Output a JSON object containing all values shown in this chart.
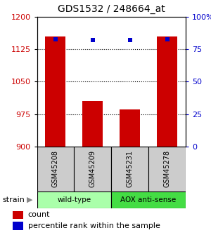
{
  "title": "GDS1532 / 248664_at",
  "samples": [
    "GSM45208",
    "GSM45209",
    "GSM45231",
    "GSM45278"
  ],
  "counts": [
    1155,
    1005,
    985,
    1155
  ],
  "percentiles": [
    83,
    82,
    82,
    83
  ],
  "ylim_left": [
    900,
    1200
  ],
  "ylim_right": [
    0,
    100
  ],
  "yticks_left": [
    900,
    975,
    1050,
    1125,
    1200
  ],
  "yticks_right": [
    0,
    25,
    50,
    75,
    100
  ],
  "bar_color": "#cc0000",
  "dot_color": "#0000cc",
  "groups": [
    {
      "label": "wild-type",
      "color": "#aaffaa"
    },
    {
      "label": "AOX anti-sense",
      "color": "#44dd44"
    }
  ],
  "strain_label": "strain",
  "legend_count_label": "count",
  "legend_pct_label": "percentile rank within the sample",
  "bar_width": 0.55,
  "ylabel_left_color": "#cc0000",
  "ylabel_right_color": "#0000cc",
  "sample_box_color": "#cccccc",
  "title_fontsize": 10
}
